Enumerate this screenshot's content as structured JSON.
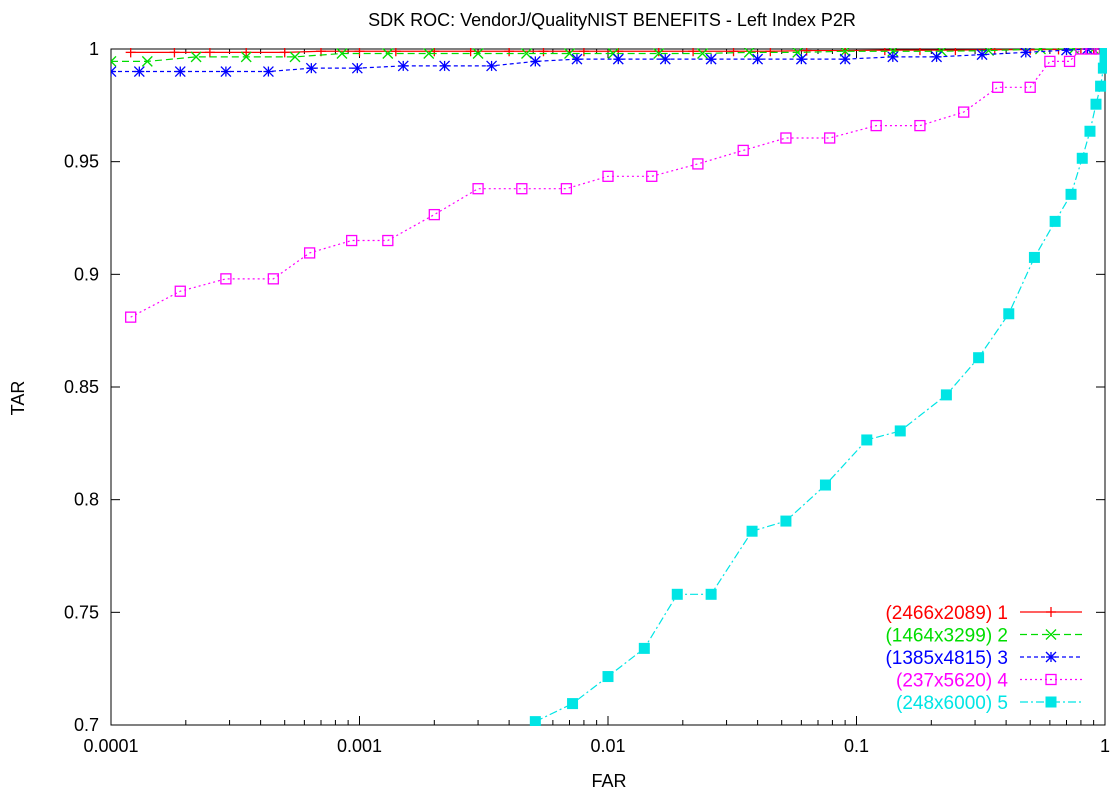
{
  "chart_data": {
    "type": "line",
    "title": "SDK ROC: VendorJ/QualityNIST BENEFITS - Left Index P2R",
    "xlabel": "FAR",
    "ylabel": "TAR",
    "x_scale": "log",
    "xlim": [
      0.0001,
      1
    ],
    "ylim": [
      0.7,
      1
    ],
    "x_ticks": [
      {
        "value": 0.0001,
        "label": "0.0001"
      },
      {
        "value": 0.001,
        "label": "0.001"
      },
      {
        "value": 0.01,
        "label": "0.01"
      },
      {
        "value": 0.1,
        "label": "0.1"
      },
      {
        "value": 1,
        "label": "1"
      }
    ],
    "y_ticks": [
      {
        "value": 0.7,
        "label": "0.7"
      },
      {
        "value": 0.75,
        "label": "0.75"
      },
      {
        "value": 0.8,
        "label": "0.8"
      },
      {
        "value": 0.85,
        "label": "0.85"
      },
      {
        "value": 0.9,
        "label": "0.9"
      },
      {
        "value": 0.95,
        "label": "0.95"
      },
      {
        "value": 1,
        "label": "1"
      }
    ],
    "grid": false,
    "legend_position": "bottom-right",
    "series": [
      {
        "name": "(2466x2089) 1",
        "color": "#ff0000",
        "marker": "plus",
        "dash": "",
        "points": [
          [
            0.00012,
            0.9985
          ],
          [
            0.00018,
            0.9985
          ],
          [
            0.00025,
            0.9985
          ],
          [
            0.00035,
            0.9985
          ],
          [
            0.0005,
            0.9985
          ],
          [
            0.0007,
            0.999
          ],
          [
            0.001,
            0.999
          ],
          [
            0.0014,
            0.999
          ],
          [
            0.002,
            0.999
          ],
          [
            0.0028,
            0.999
          ],
          [
            0.004,
            0.999
          ],
          [
            0.0055,
            0.999
          ],
          [
            0.008,
            0.999
          ],
          [
            0.011,
            0.999
          ],
          [
            0.016,
            0.999
          ],
          [
            0.022,
            0.999
          ],
          [
            0.032,
            0.999
          ],
          [
            0.045,
            0.999
          ],
          [
            0.063,
            0.9993
          ],
          [
            0.09,
            0.9993
          ],
          [
            0.13,
            0.9995
          ],
          [
            0.18,
            0.9995
          ],
          [
            0.25,
            0.9995
          ],
          [
            0.36,
            0.9997
          ],
          [
            0.5,
            0.9997
          ],
          [
            0.65,
            0.9998
          ],
          [
            0.8,
            1.0
          ],
          [
            0.9,
            1.0
          ],
          [
            0.95,
            1.0
          ],
          [
            1.0,
            1.0
          ]
        ]
      },
      {
        "name": "(1464x3299) 2",
        "color": "#00dd00",
        "marker": "x",
        "dash": "7,4",
        "points": [
          [
            0.0001,
            0.9945
          ],
          [
            0.00014,
            0.9945
          ],
          [
            0.00022,
            0.9965
          ],
          [
            0.00035,
            0.9965
          ],
          [
            0.00055,
            0.9965
          ],
          [
            0.00085,
            0.998
          ],
          [
            0.0013,
            0.998
          ],
          [
            0.0019,
            0.998
          ],
          [
            0.003,
            0.998
          ],
          [
            0.0047,
            0.998
          ],
          [
            0.007,
            0.998
          ],
          [
            0.0105,
            0.998
          ],
          [
            0.016,
            0.998
          ],
          [
            0.024,
            0.998
          ],
          [
            0.037,
            0.9985
          ],
          [
            0.058,
            0.9985
          ],
          [
            0.09,
            0.999
          ],
          [
            0.14,
            0.999
          ],
          [
            0.22,
            0.999
          ],
          [
            0.34,
            0.9993
          ],
          [
            0.55,
            1.0
          ],
          [
            0.75,
            1.0
          ],
          [
            0.9,
            1.0
          ],
          [
            1.0,
            1.0
          ]
        ]
      },
      {
        "name": "(1385x4815) 3",
        "color": "#0000ff",
        "marker": "star",
        "dash": "4,3",
        "points": [
          [
            0.0001,
            0.99
          ],
          [
            0.00013,
            0.99
          ],
          [
            0.00019,
            0.99
          ],
          [
            0.00029,
            0.99
          ],
          [
            0.00043,
            0.99
          ],
          [
            0.00064,
            0.9915
          ],
          [
            0.00098,
            0.9915
          ],
          [
            0.0015,
            0.9925
          ],
          [
            0.0022,
            0.9925
          ],
          [
            0.0034,
            0.9925
          ],
          [
            0.0051,
            0.9945
          ],
          [
            0.0075,
            0.9955
          ],
          [
            0.011,
            0.9955
          ],
          [
            0.017,
            0.9955
          ],
          [
            0.026,
            0.9955
          ],
          [
            0.04,
            0.9955
          ],
          [
            0.06,
            0.9955
          ],
          [
            0.09,
            0.9955
          ],
          [
            0.14,
            0.9965
          ],
          [
            0.21,
            0.9965
          ],
          [
            0.32,
            0.9975
          ],
          [
            0.48,
            0.9985
          ],
          [
            0.7,
            0.9995
          ],
          [
            0.85,
            1.0
          ],
          [
            1.0,
            1.0
          ]
        ]
      },
      {
        "name": "(237x5620) 4",
        "color": "#ff00ff",
        "marker": "square-open",
        "dash": "2,3",
        "points": [
          [
            0.00012,
            0.881
          ],
          [
            0.00019,
            0.8925
          ],
          [
            0.00029,
            0.898
          ],
          [
            0.00045,
            0.898
          ],
          [
            0.00063,
            0.9095
          ],
          [
            0.00093,
            0.915
          ],
          [
            0.0013,
            0.915
          ],
          [
            0.002,
            0.9265
          ],
          [
            0.003,
            0.938
          ],
          [
            0.0045,
            0.938
          ],
          [
            0.0068,
            0.938
          ],
          [
            0.01,
            0.9435
          ],
          [
            0.015,
            0.9435
          ],
          [
            0.023,
            0.949
          ],
          [
            0.035,
            0.955
          ],
          [
            0.052,
            0.9605
          ],
          [
            0.078,
            0.9605
          ],
          [
            0.12,
            0.966
          ],
          [
            0.18,
            0.966
          ],
          [
            0.27,
            0.972
          ],
          [
            0.37,
            0.983
          ],
          [
            0.5,
            0.983
          ],
          [
            0.6,
            0.9945
          ],
          [
            0.72,
            0.9945
          ],
          [
            0.8,
            1.0
          ],
          [
            0.88,
            1.0
          ],
          [
            0.95,
            1.0
          ],
          [
            1.0,
            1.0
          ]
        ]
      },
      {
        "name": "(248x6000) 5",
        "color": "#00e5e5",
        "marker": "square-filled",
        "dash": "8,3,2,3",
        "points": [
          [
            0.0051,
            0.7015
          ],
          [
            0.0072,
            0.7095
          ],
          [
            0.01,
            0.7215
          ],
          [
            0.014,
            0.734
          ],
          [
            0.019,
            0.758
          ],
          [
            0.026,
            0.758
          ],
          [
            0.038,
            0.786
          ],
          [
            0.052,
            0.7905
          ],
          [
            0.075,
            0.8065
          ],
          [
            0.11,
            0.8265
          ],
          [
            0.15,
            0.8305
          ],
          [
            0.23,
            0.8465
          ],
          [
            0.31,
            0.863
          ],
          [
            0.41,
            0.8825
          ],
          [
            0.52,
            0.9075
          ],
          [
            0.63,
            0.9235
          ],
          [
            0.73,
            0.9355
          ],
          [
            0.81,
            0.9515
          ],
          [
            0.87,
            0.9635
          ],
          [
            0.92,
            0.9755
          ],
          [
            0.96,
            0.9835
          ],
          [
            0.985,
            0.9915
          ],
          [
            1.0,
            0.9955
          ],
          [
            1.0,
            1.0
          ]
        ]
      }
    ]
  }
}
